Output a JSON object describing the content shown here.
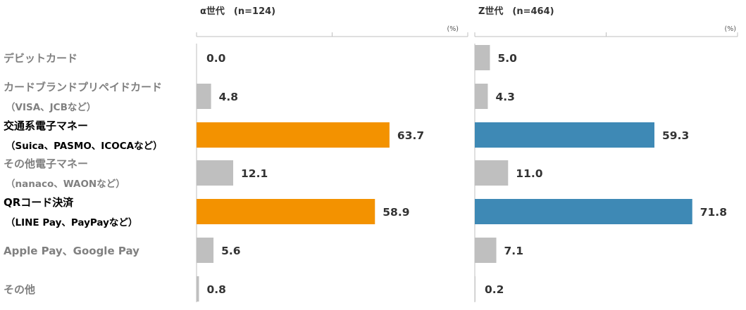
{
  "chart_data": {
    "type": "bar",
    "orientation": "horizontal",
    "unit": "(%)",
    "categories": [
      {
        "main": "デビットカード",
        "sub": "",
        "highlight": false
      },
      {
        "main": "カードブランドプリペイドカード",
        "sub": "（VISA、JCBなど）",
        "highlight": false
      },
      {
        "main": "交通系電子マネー",
        "sub": "（Suica、PASMO、ICOCAなど）",
        "highlight": true
      },
      {
        "main": "その他電子マネー",
        "sub": "（nanaco、WAONなど）",
        "highlight": false
      },
      {
        "main": "QRコード決済",
        "sub": "（LINE Pay、PayPayなど）",
        "highlight": true
      },
      {
        "main": "Apple Pay、Google Pay",
        "sub": "",
        "highlight": false
      },
      {
        "main": "その他",
        "sub": "",
        "highlight": false
      }
    ],
    "series": [
      {
        "name": "α世代　(n=124)",
        "values": [
          0.0,
          4.8,
          63.7,
          12.1,
          58.9,
          5.6,
          0.8
        ],
        "highlight_color": "#F39200"
      },
      {
        "name": "Z世代　(n=464)",
        "values": [
          5.0,
          4.3,
          59.3,
          11.0,
          71.8,
          7.1,
          0.2
        ],
        "highlight_color": "#3E89B5"
      }
    ],
    "xlim": [
      0,
      100
    ],
    "base_color": "#BFBFBF",
    "highlight_label_color": "#000000",
    "base_label_color": "#808080",
    "legend": "none",
    "grid": false
  }
}
